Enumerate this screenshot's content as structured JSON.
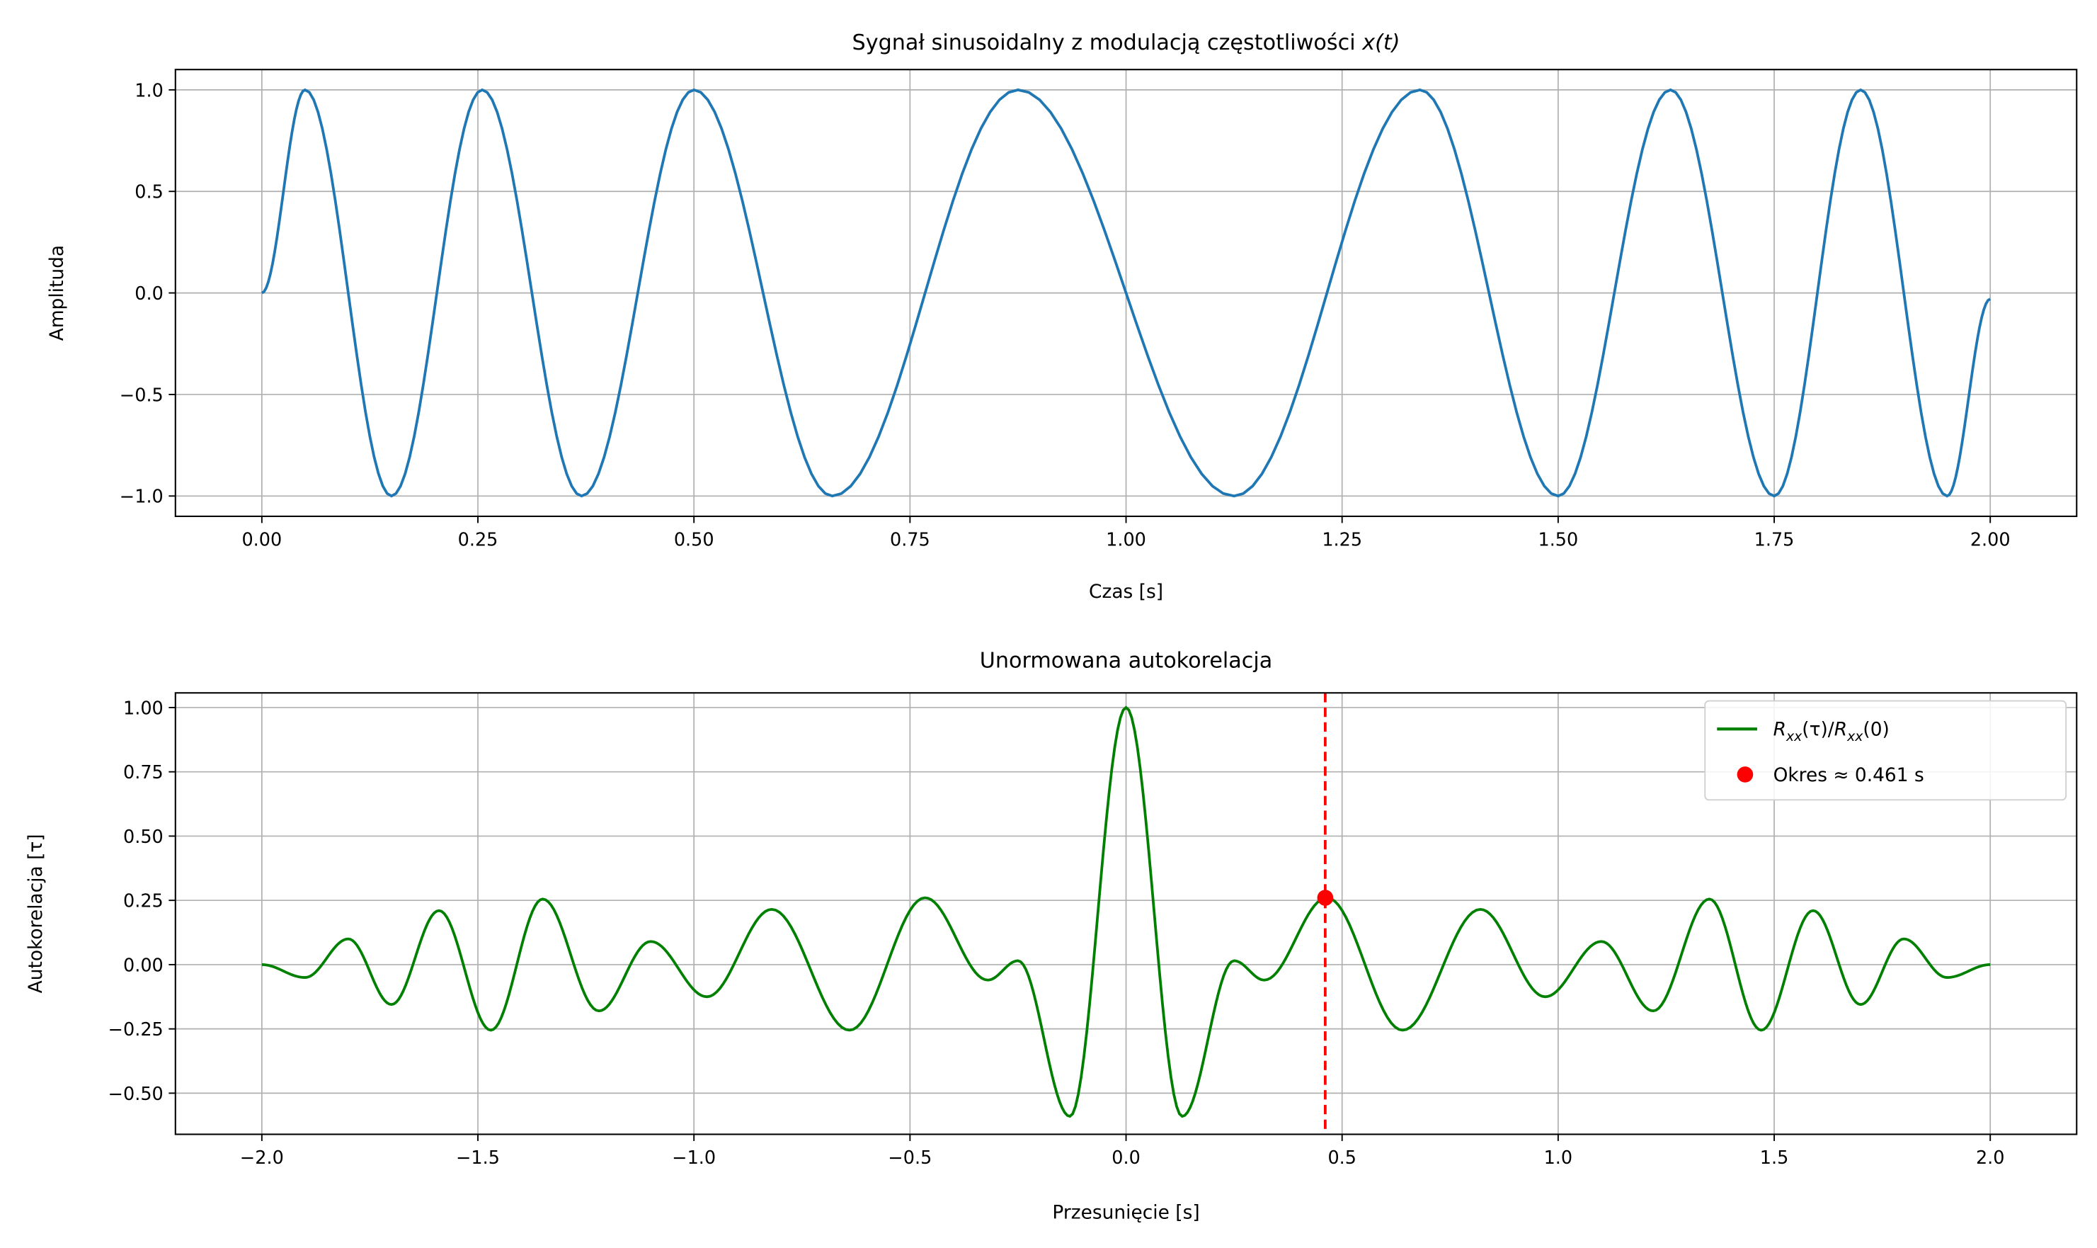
{
  "chart_data": [
    {
      "type": "line",
      "title_main": "Sygnał sinusoidalny z modulacją częstotliwości ",
      "title_math": "x(t)",
      "xlabel": "Czas [s]",
      "ylabel": "Amplituda",
      "xlim": [
        -0.1,
        2.1
      ],
      "ylim": [
        -1.1,
        1.1
      ],
      "xticks": [
        0,
        0.25,
        0.5,
        0.75,
        1.0,
        1.25,
        1.5,
        1.75,
        2.0
      ],
      "xtick_labels": [
        "0.00",
        "0.25",
        "0.50",
        "0.75",
        "1.00",
        "1.25",
        "1.50",
        "1.75",
        "2.00"
      ],
      "yticks": [
        -1.0,
        -0.5,
        0.0,
        0.5,
        1.0
      ],
      "ytick_labels": [
        "−1.0",
        "−0.5",
        "0.0",
        "0.5",
        "1.0"
      ],
      "grid": true,
      "series": [
        {
          "name": "x(t)",
          "color": "#1f77b4",
          "extrema": [
            [
              0,
              0
            ],
            [
              0.05,
              1
            ],
            [
              0.15,
              -1
            ],
            [
              0.255,
              1
            ],
            [
              0.37,
              -1
            ],
            [
              0.5,
              1
            ],
            [
              0.66,
              -1
            ],
            [
              0.875,
              1
            ],
            [
              1.125,
              -1
            ],
            [
              1.34,
              1
            ],
            [
              1.5,
              -1
            ],
            [
              1.63,
              1
            ],
            [
              1.75,
              -1
            ],
            [
              1.85,
              1
            ],
            [
              1.95,
              -1
            ],
            [
              2.0,
              -0.03
            ]
          ]
        }
      ]
    },
    {
      "type": "line",
      "title": "Unormowana autokorelacja",
      "xlabel": "Przesunięcie [s]",
      "ylabel": "Autokorelacja [τ]",
      "xlim": [
        -2.2,
        2.2
      ],
      "ylim": [
        -0.66,
        1.057
      ],
      "xticks": [
        -2.0,
        -1.5,
        -1.0,
        -0.5,
        0.0,
        0.5,
        1.0,
        1.5,
        2.0
      ],
      "xtick_labels": [
        "−2.0",
        "−1.5",
        "−1.0",
        "−0.5",
        "0.0",
        "0.5",
        "1.0",
        "1.5",
        "2.0"
      ],
      "yticks": [
        -0.5,
        -0.25,
        0,
        0.25,
        0.5,
        0.75,
        1.0
      ],
      "ytick_labels": [
        "−0.50",
        "−0.25",
        "0.00",
        "0.25",
        "0.50",
        "0.75",
        "1.00"
      ],
      "grid": true,
      "legend_position": "top-right",
      "series": [
        {
          "name": "R_xx(τ)/R_xx(0)",
          "legend_label": "Rxx(τ)/Rxx(0)",
          "color": "#008000",
          "extrema_positive_half": [
            [
              0,
              1.0
            ],
            [
              0.13,
              -0.59
            ],
            [
              0.25,
              0.015
            ],
            [
              0.32,
              -0.06
            ],
            [
              0.465,
              0.26
            ],
            [
              0.64,
              -0.255
            ],
            [
              0.82,
              0.215
            ],
            [
              0.97,
              -0.125
            ],
            [
              1.1,
              0.09
            ],
            [
              1.22,
              -0.18
            ],
            [
              1.35,
              0.255
            ],
            [
              1.47,
              -0.255
            ],
            [
              1.59,
              0.21
            ],
            [
              1.7,
              -0.155
            ],
            [
              1.8,
              0.1
            ],
            [
              1.9,
              -0.05
            ],
            [
              2.0,
              0.0
            ]
          ],
          "symmetric": true
        }
      ],
      "marker": {
        "label": "Okres ≈ 0.461 s",
        "x": 0.461,
        "y": 0.26,
        "color": "#ff0000"
      },
      "vline": {
        "x": 0.461,
        "color": "#ff0000",
        "style": "dashed"
      }
    }
  ]
}
